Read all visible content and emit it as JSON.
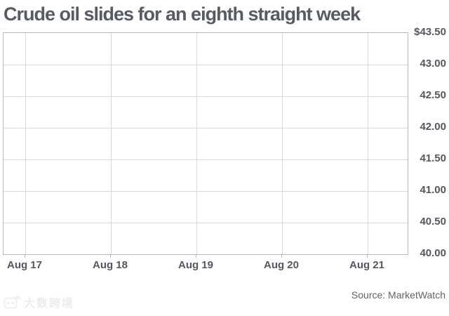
{
  "title": "Crude oil slides for an eighth straight week",
  "source": "Source: MarketWatch",
  "watermark": {
    "text": "大数跨境",
    "icon": "watermark-logo-icon"
  },
  "chart_data": {
    "type": "line",
    "title": "Crude oil slides for an eighth straight week",
    "x_tick_labels": [
      "Aug 17",
      "Aug 18",
      "Aug 19",
      "Aug 20",
      "Aug 21"
    ],
    "y_tick_labels": [
      "$43.50",
      "43.00",
      "42.50",
      "42.00",
      "41.50",
      "41.00",
      "40.50",
      "40.00"
    ],
    "ylim": [
      40.0,
      43.5
    ],
    "y_tick_step": 0.5,
    "y_axis_side": "right",
    "grid": true,
    "legend": "none",
    "series": [],
    "note_visible_data": "plot grid is empty; no data line is rendered in the screenshot",
    "source": "Source: MarketWatch",
    "colors": {
      "background": "#ffffff",
      "title_text": "#565b64",
      "tick_label_text": "#54575d",
      "gridline": "#d8d9da",
      "plot_border": "#b6b9bc",
      "source_text": "#606266",
      "watermark": "#ececec"
    }
  }
}
